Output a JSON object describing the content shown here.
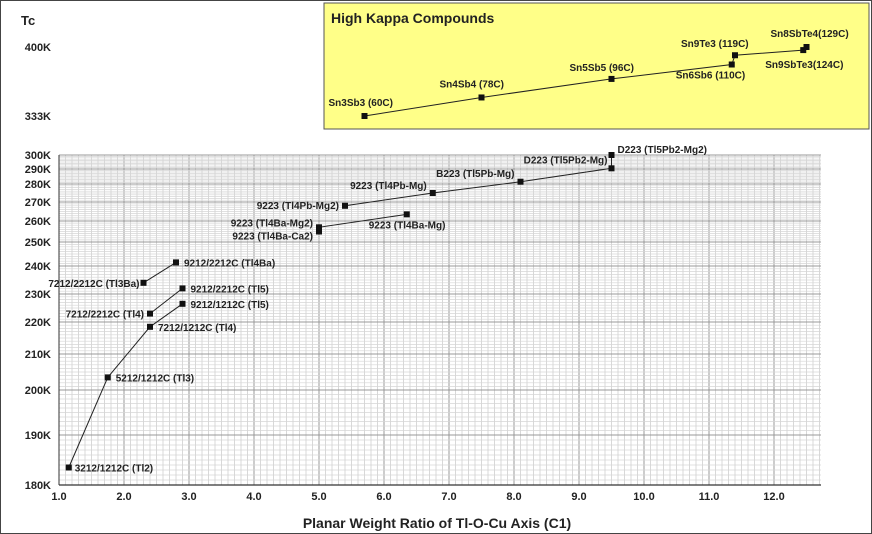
{
  "chart_data": {
    "type": "scatter",
    "ylabel": "Tc",
    "xlabel": "Planar Weight Ratio of Tl-O-Cu Axis (C1)",
    "xlim": [
      1.0,
      12.7
    ],
    "xticks": [
      "1.0",
      "2.0",
      "3.0",
      "4.0",
      "5.0",
      "6.0",
      "7.0",
      "8.0",
      "9.0",
      "10.0",
      "11.0",
      "12.0"
    ],
    "y_tick_labels": [
      {
        "label": "180K",
        "value": 180
      },
      {
        "label": "190K",
        "value": 190
      },
      {
        "label": "200K",
        "value": 200
      },
      {
        "label": "210K",
        "value": 210
      },
      {
        "label": "220K",
        "value": 220
      },
      {
        "label": "230K",
        "value": 230
      },
      {
        "label": "240K",
        "value": 240
      },
      {
        "label": "250K",
        "value": 250
      },
      {
        "label": "260K",
        "value": 260
      },
      {
        "label": "270K",
        "value": 270
      },
      {
        "label": "280K",
        "value": 280
      },
      {
        "label": "290K",
        "value": 290
      },
      {
        "label": "300K",
        "value": 300
      },
      {
        "label": "333K",
        "value": 333
      },
      {
        "label": "400K",
        "value": 400
      }
    ],
    "grid": true,
    "series": [
      {
        "points": [
          {
            "x": 1.15,
            "y": 183.5,
            "label": "3212/1212C (Tl2)"
          },
          {
            "x": 1.75,
            "y": 203.5,
            "label": "5212/1212C (Tl3)"
          },
          {
            "x": 2.4,
            "y": 218.5,
            "label": "7212/1212C (Tl4)"
          },
          {
            "x": 2.9,
            "y": 226.5,
            "label": "9212/1212C (Tl5)"
          }
        ]
      },
      {
        "points": [
          {
            "x": 2.4,
            "y": 223,
            "label": "7212/2212C (Tl4)"
          },
          {
            "x": 2.9,
            "y": 232,
            "label": "9212/2212C (Tl5)"
          }
        ]
      },
      {
        "points": [
          {
            "x": 2.3,
            "y": 234,
            "label": "7212/2212C (Tl3Ba)"
          },
          {
            "x": 2.8,
            "y": 241.5,
            "label": "9212/2212C (Tl4Ba)"
          }
        ]
      },
      {
        "points": [
          {
            "x": 5.0,
            "y": 255,
            "label": "9223 (Tl4Ba-Ca2)"
          },
          {
            "x": 5.0,
            "y": 257,
            "label": "9223 (Tl4Ba-Mg2)"
          },
          {
            "x": 6.35,
            "y": 263.5,
            "label": "9223 (Tl4Ba-Mg)"
          }
        ]
      },
      {
        "points": [
          {
            "x": 5.4,
            "y": 268,
            "label": "9223 (Tl4Pb-Mg2)"
          },
          {
            "x": 6.75,
            "y": 275,
            "label": "9223 (Tl4Pb-Mg)"
          },
          {
            "x": 8.1,
            "y": 281.5,
            "label": "B223 (Tl5Pb-Mg)"
          },
          {
            "x": 9.5,
            "y": 290.5,
            "label": "D223 (Tl5Pb2-Mg)"
          },
          {
            "x": 9.5,
            "y": 300,
            "label": "D223 (Tl5Pb2-Mg2)"
          }
        ]
      }
    ],
    "inset": {
      "title": "High Kappa Compounds",
      "background": "#ffff88",
      "points": [
        {
          "x": 5.7,
          "y": 333,
          "label": "Sn3Sb3 (60C)"
        },
        {
          "x": 7.5,
          "y": 351,
          "label": "Sn4Sb4 (78C)"
        },
        {
          "x": 9.5,
          "y": 369,
          "label": "Sn5Sb5 (96C)"
        },
        {
          "x": 11.35,
          "y": 383,
          "label": "Sn6Sb6 (110C)"
        },
        {
          "x": 11.4,
          "y": 392,
          "label": "Sn9Te3 (119C)"
        },
        {
          "x": 12.45,
          "y": 397,
          "label": "Sn9SbTe3(124C)"
        },
        {
          "x": 12.5,
          "y": 402,
          "label": "Sn8SbTe4(129C)"
        }
      ]
    }
  }
}
